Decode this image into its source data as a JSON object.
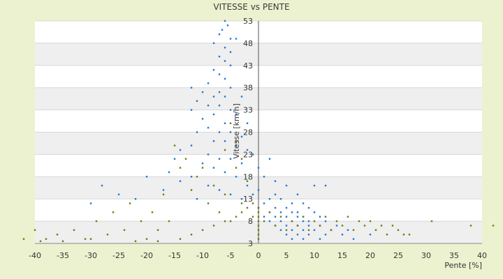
{
  "chart_data": {
    "type": "scatter",
    "title": "VITESSE vs PENTE",
    "xlabel": "Pente [%]",
    "ylabel": "Vitesse [km/h]",
    "xlim": [
      -40,
      40
    ],
    "ylim": [
      3,
      53
    ],
    "x_ticks": [
      "-40",
      "-35",
      "-30",
      "-25",
      "-20",
      "-15",
      "-10",
      "-5",
      "0",
      "5",
      "10",
      "15",
      "20",
      "25",
      "30",
      "35",
      "40"
    ],
    "y_ticks": [
      "3",
      "8",
      "13",
      "18",
      "23",
      "28",
      "33",
      "38",
      "43",
      "48",
      "53"
    ],
    "grid": true,
    "legend": "none",
    "series": [
      {
        "color": "#1f78d1",
        "points": [
          [
            -6,
            53
          ],
          [
            -5.5,
            52
          ],
          [
            -6.5,
            51
          ],
          [
            -7,
            50
          ],
          [
            -5,
            49
          ],
          [
            -4,
            49
          ],
          [
            -8,
            48
          ],
          [
            -6,
            47
          ],
          [
            -5,
            46
          ],
          [
            -7,
            45
          ],
          [
            -6,
            44
          ],
          [
            -5,
            43
          ],
          [
            -8,
            42
          ],
          [
            -7,
            41
          ],
          [
            -6,
            40
          ],
          [
            -9,
            39
          ],
          [
            -5,
            38
          ],
          [
            -12,
            38
          ],
          [
            -7,
            37
          ],
          [
            -10,
            37
          ],
          [
            -6,
            36
          ],
          [
            -8,
            36
          ],
          [
            -3,
            36
          ],
          [
            -11,
            35
          ],
          [
            -9,
            34
          ],
          [
            -7,
            34
          ],
          [
            -5,
            33
          ],
          [
            -12,
            33
          ],
          [
            -8,
            32
          ],
          [
            -4,
            32
          ],
          [
            -10,
            31
          ],
          [
            -6,
            30
          ],
          [
            -2,
            30
          ],
          [
            -9,
            29
          ],
          [
            -7,
            28
          ],
          [
            -5,
            28
          ],
          [
            -11,
            28
          ],
          [
            -3,
            27
          ],
          [
            -8,
            26
          ],
          [
            -6,
            26
          ],
          [
            -12,
            25
          ],
          [
            -4,
            25
          ],
          [
            -2,
            24
          ],
          [
            -14,
            24
          ],
          [
            -9,
            23
          ],
          [
            -1,
            23
          ],
          [
            -7,
            22
          ],
          [
            -5,
            22
          ],
          [
            -15,
            22
          ],
          [
            2,
            22
          ],
          [
            -10,
            21
          ],
          [
            -3,
            21
          ],
          [
            0,
            20
          ],
          [
            -8,
            20
          ],
          [
            -16,
            19
          ],
          [
            -6,
            19
          ],
          [
            -12,
            18
          ],
          [
            -4,
            18
          ],
          [
            -20,
            18
          ],
          [
            1,
            18
          ],
          [
            3,
            17
          ],
          [
            -14,
            17
          ],
          [
            -9,
            16
          ],
          [
            -2,
            16
          ],
          [
            -28,
            16
          ],
          [
            5,
            16
          ],
          [
            10,
            16
          ],
          [
            12,
            16
          ],
          [
            -7,
            15
          ],
          [
            -17,
            15
          ],
          [
            0,
            15
          ],
          [
            -1,
            14
          ],
          [
            -5,
            14
          ],
          [
            -25,
            14
          ],
          [
            3,
            14
          ],
          [
            7,
            14
          ],
          [
            -11,
            13
          ],
          [
            -3,
            13
          ],
          [
            2,
            13
          ],
          [
            4,
            13
          ],
          [
            -22,
            13
          ],
          [
            -30,
            12
          ],
          [
            6,
            12
          ],
          [
            1,
            12
          ],
          [
            8,
            12
          ],
          [
            0,
            11
          ],
          [
            5,
            11
          ],
          [
            3,
            11
          ],
          [
            9,
            11
          ],
          [
            2,
            10
          ],
          [
            4,
            10
          ],
          [
            6,
            10
          ],
          [
            7,
            10
          ],
          [
            10,
            10
          ],
          [
            1,
            9
          ],
          [
            3,
            9
          ],
          [
            5,
            9
          ],
          [
            7,
            9
          ],
          [
            8,
            9
          ],
          [
            11,
            9
          ],
          [
            2,
            8
          ],
          [
            4,
            8
          ],
          [
            6,
            8
          ],
          [
            8,
            8
          ],
          [
            9,
            8
          ],
          [
            12,
            8
          ],
          [
            3,
            7
          ],
          [
            5,
            7
          ],
          [
            7,
            7
          ],
          [
            9,
            7
          ],
          [
            11,
            7
          ],
          [
            14,
            7
          ],
          [
            4,
            6
          ],
          [
            6,
            6
          ],
          [
            8,
            6
          ],
          [
            10,
            6
          ],
          [
            13,
            6
          ],
          [
            16,
            6
          ],
          [
            5,
            5
          ],
          [
            7,
            5
          ],
          [
            9,
            5
          ],
          [
            12,
            5
          ],
          [
            15,
            5
          ],
          [
            20,
            5
          ],
          [
            6,
            4
          ],
          [
            8,
            4
          ],
          [
            11,
            4
          ],
          [
            17,
            4
          ]
        ]
      },
      {
        "color": "#6b7a10",
        "points": [
          [
            -40,
            6
          ],
          [
            -42,
            4
          ],
          [
            -38,
            4
          ],
          [
            -36,
            5
          ],
          [
            -35,
            3.5
          ],
          [
            -33,
            6
          ],
          [
            -31,
            4
          ],
          [
            -29,
            8
          ],
          [
            -27,
            5
          ],
          [
            -26,
            10
          ],
          [
            -24,
            6
          ],
          [
            -23,
            12
          ],
          [
            -21,
            8
          ],
          [
            -20,
            4
          ],
          [
            -19,
            10
          ],
          [
            -18,
            6
          ],
          [
            -17,
            14
          ],
          [
            -16,
            8
          ],
          [
            -15,
            25
          ],
          [
            -14,
            20
          ],
          [
            -13,
            22
          ],
          [
            -12,
            15
          ],
          [
            -11,
            18
          ],
          [
            -10,
            20
          ],
          [
            -9,
            12
          ],
          [
            -8,
            16
          ],
          [
            -7,
            10
          ],
          [
            -6,
            14
          ],
          [
            -5,
            8
          ],
          [
            -4,
            20
          ],
          [
            -3,
            12
          ],
          [
            -2,
            17
          ],
          [
            -1,
            9
          ],
          [
            0,
            11
          ],
          [
            1,
            8
          ],
          [
            2,
            10
          ],
          [
            3,
            7
          ],
          [
            4,
            9
          ],
          [
            5,
            6
          ],
          [
            6,
            8
          ],
          [
            7,
            7
          ],
          [
            8,
            9
          ],
          [
            9,
            6
          ],
          [
            10,
            8
          ],
          [
            11,
            7
          ],
          [
            12,
            9
          ],
          [
            13,
            6
          ],
          [
            14,
            8
          ],
          [
            15,
            7
          ],
          [
            16,
            9
          ],
          [
            17,
            6
          ],
          [
            18,
            8
          ],
          [
            19,
            7
          ],
          [
            20,
            8
          ],
          [
            21,
            6
          ],
          [
            22,
            7
          ],
          [
            23,
            5
          ],
          [
            24,
            7
          ],
          [
            25,
            6
          ],
          [
            26,
            5
          ],
          [
            27,
            5
          ],
          [
            31,
            8
          ],
          [
            38,
            7
          ],
          [
            42,
            7
          ],
          [
            -39,
            3.5
          ],
          [
            -30,
            4
          ],
          [
            -22,
            3.5
          ],
          [
            -18,
            3.5
          ],
          [
            -14,
            4
          ],
          [
            -12,
            5
          ],
          [
            -10,
            6
          ],
          [
            -8,
            7
          ],
          [
            -6,
            8
          ],
          [
            -4,
            9
          ],
          [
            -3,
            10
          ],
          [
            -2,
            11
          ],
          [
            -1,
            12
          ],
          [
            0,
            4
          ],
          [
            0,
            5
          ],
          [
            0,
            6
          ],
          [
            0,
            7
          ],
          [
            0,
            8
          ],
          [
            0,
            9
          ],
          [
            0,
            10
          ],
          [
            -5,
            30
          ],
          [
            -4,
            26
          ],
          [
            -6,
            24
          ],
          [
            -3,
            22
          ]
        ]
      }
    ]
  }
}
